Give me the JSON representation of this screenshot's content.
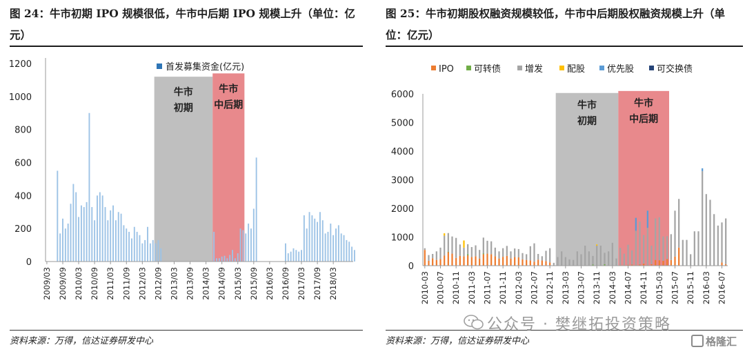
{
  "chart_data": [
    {
      "type": "bar",
      "title": "图 24：牛市初期 IPO 规模很低，牛市中后期 IPO 规模上升（单位：亿元）",
      "source": "资料来源：万得，信达证券研发中心",
      "legend": [
        "首发募集资金(亿元)"
      ],
      "legend_position": "top-center",
      "ylim": [
        0,
        1200
      ],
      "yticks": [
        0,
        200,
        400,
        600,
        800,
        1000,
        1200
      ],
      "xticks": [
        "2009/03",
        "2009/09",
        "2010/03",
        "2010/09",
        "2011/03",
        "2011/09",
        "2012/03",
        "2012/09",
        "2013/03",
        "2013/09",
        "2014/03",
        "2014/09",
        "2015/03",
        "2015/09",
        "2016/03",
        "2016/09",
        "2017/03",
        "2017/09",
        "2018/03"
      ],
      "series": [
        {
          "name": "首发募集资金(亿元)",
          "color": "#9dc3e6",
          "x_start": "2009/03",
          "frequency": "monthly",
          "values": [
            0,
            0,
            0,
            0,
            550,
            170,
            260,
            200,
            230,
            350,
            470,
            420,
            270,
            340,
            330,
            360,
            900,
            330,
            250,
            400,
            420,
            400,
            330,
            250,
            310,
            340,
            250,
            300,
            290,
            220,
            200,
            180,
            140,
            210,
            180,
            160,
            110,
            130,
            210,
            110,
            130,
            110,
            130,
            80,
            0,
            0,
            0,
            0,
            0,
            0,
            0,
            0,
            0,
            0,
            0,
            0,
            0,
            0,
            0,
            0,
            0,
            0,
            0,
            180,
            20,
            20,
            30,
            35,
            20,
            40,
            70,
            20,
            50,
            200,
            190,
            170,
            230,
            200,
            320,
            630,
            0,
            0,
            0,
            0,
            0,
            0,
            0,
            0,
            0,
            0,
            110,
            50,
            60,
            80,
            70,
            60,
            70,
            280,
            200,
            300,
            280,
            260,
            240,
            300,
            250,
            170,
            180,
            230,
            160,
            200,
            220,
            170,
            160,
            130,
            120,
            90,
            70
          ]
        }
      ],
      "shaded_periods": [
        {
          "label_line1": "牛市",
          "label_line2": "初期",
          "start": "2012/08",
          "end": "2014/06",
          "color": "#bfbfbf"
        },
        {
          "label_line1": "牛市",
          "label_line2": "中后期",
          "start": "2014/06",
          "end": "2015/06",
          "color": "#e8898c"
        }
      ]
    },
    {
      "type": "bar",
      "stacked": true,
      "title": "图 25：牛市初期股权融资规模较低，牛市中后期股权融资规模上升（单位：亿元）",
      "source": "资料来源：万得，信达证券研发中心",
      "legend_position": "top",
      "ylim": [
        0,
        6000
      ],
      "yticks": [
        0,
        1000,
        2000,
        3000,
        4000,
        5000,
        6000
      ],
      "xticks": [
        "2010-03",
        "2010-07",
        "2010-11",
        "2011-03",
        "2011-07",
        "2011-11",
        "2012-03",
        "2012-07",
        "2012-11",
        "2013-03",
        "2013-07",
        "2013-11",
        "2014-03",
        "2014-07",
        "2014-11",
        "2015-03",
        "2015-07",
        "2015-11",
        "2016-03",
        "2016-07"
      ],
      "x_start": "2010-03",
      "frequency": "monthly",
      "series": [
        {
          "name": "IPO",
          "color": "#ed7d31",
          "values": [
            550,
            170,
            260,
            200,
            230,
            350,
            470,
            420,
            270,
            340,
            330,
            360,
            300,
            330,
            250,
            400,
            420,
            400,
            330,
            250,
            310,
            340,
            250,
            300,
            290,
            220,
            200,
            180,
            140,
            210,
            180,
            160,
            110,
            0,
            0,
            0,
            0,
            0,
            0,
            0,
            0,
            0,
            0,
            0,
            0,
            0,
            0,
            0,
            0,
            0,
            20,
            20,
            30,
            35,
            20,
            40,
            70,
            20,
            50,
            200,
            190,
            170,
            230,
            200,
            320,
            630,
            0,
            0,
            0,
            0,
            0,
            0,
            0,
            0,
            0,
            0,
            110,
            50
          ]
        },
        {
          "name": "可转债",
          "color": "#70ad47",
          "values": [
            0,
            0,
            0,
            0,
            0,
            0,
            20,
            0,
            0,
            0,
            0,
            40,
            0,
            0,
            0,
            30,
            0,
            0,
            0,
            0,
            0,
            0,
            0,
            0,
            0,
            0,
            0,
            0,
            0,
            0,
            0,
            0,
            0,
            0,
            0,
            0,
            0,
            0,
            0,
            0,
            0,
            0,
            0,
            40,
            0,
            0,
            50,
            0,
            0,
            0,
            0,
            0,
            0,
            0,
            0,
            0,
            0,
            0,
            0,
            0,
            0,
            0,
            0,
            0,
            0,
            0,
            0,
            0,
            0,
            0,
            0,
            0,
            0,
            0,
            0,
            0,
            0,
            0
          ]
        },
        {
          "name": "增发",
          "color": "#a5a5a5",
          "values": [
            60,
            200,
            150,
            300,
            400,
            700,
            650,
            600,
            700,
            400,
            300,
            350,
            350,
            380,
            300,
            550,
            450,
            450,
            300,
            250,
            300,
            350,
            250,
            300,
            290,
            220,
            200,
            500,
            640,
            200,
            150,
            360,
            500,
            100,
            300,
            500,
            300,
            220,
            200,
            500,
            400,
            700,
            500,
            300,
            700,
            700,
            400,
            500,
            800,
            250,
            600,
            400,
            700,
            500,
            1200,
            1500,
            1000,
            1300,
            650,
            1450,
            1500,
            850,
            800,
            900,
            1600,
            1700,
            900,
            900,
            400,
            1200,
            1200,
            3300,
            2500,
            2300,
            1800,
            1400,
            1400,
            1600
          ]
        },
        {
          "name": "配股",
          "color": "#ffc000",
          "values": [
            0,
            0,
            0,
            0,
            0,
            80,
            0,
            0,
            0,
            0,
            250,
            0,
            0,
            0,
            0,
            0,
            0,
            0,
            0,
            0,
            0,
            0,
            0,
            0,
            0,
            0,
            0,
            0,
            0,
            0,
            0,
            0,
            0,
            0,
            0,
            0,
            0,
            0,
            0,
            0,
            0,
            0,
            0,
            0,
            40,
            0,
            0,
            0,
            0,
            0,
            0,
            0,
            0,
            0,
            0,
            0,
            0,
            0,
            0,
            0,
            0,
            0,
            0,
            0,
            0,
            0,
            0,
            0,
            0,
            0,
            0,
            0,
            0,
            0,
            0,
            0,
            0,
            0
          ]
        },
        {
          "name": "优先股",
          "color": "#5b9bd5",
          "values": [
            0,
            0,
            0,
            0,
            0,
            0,
            0,
            0,
            0,
            0,
            0,
            0,
            0,
            0,
            0,
            0,
            0,
            0,
            0,
            0,
            0,
            0,
            0,
            0,
            0,
            0,
            0,
            0,
            0,
            0,
            0,
            0,
            0,
            0,
            0,
            0,
            0,
            0,
            0,
            0,
            0,
            0,
            0,
            0,
            0,
            0,
            0,
            0,
            0,
            0,
            0,
            0,
            0,
            0,
            450,
            0,
            0,
            600,
            0,
            0,
            0,
            0,
            0,
            0,
            0,
            0,
            0,
            0,
            0,
            0,
            0,
            100,
            0,
            0,
            0,
            0,
            0,
            0
          ]
        },
        {
          "name": "可交换债",
          "color": "#264478",
          "values": [
            0,
            0,
            0,
            0,
            0,
            0,
            0,
            0,
            0,
            0,
            0,
            0,
            0,
            0,
            0,
            0,
            0,
            0,
            0,
            0,
            0,
            0,
            0,
            0,
            0,
            0,
            0,
            0,
            0,
            0,
            0,
            0,
            0,
            0,
            0,
            0,
            0,
            0,
            0,
            0,
            0,
            0,
            0,
            0,
            0,
            0,
            0,
            0,
            0,
            0,
            0,
            0,
            0,
            0,
            0,
            0,
            0,
            0,
            0,
            0,
            0,
            0,
            0,
            0,
            0,
            0,
            0,
            0,
            0,
            0,
            0,
            0,
            0,
            0,
            0,
            0,
            0,
            0
          ]
        }
      ],
      "shaded_periods": [
        {
          "label_line1": "牛市",
          "label_line2": "初期",
          "start": "2013-01",
          "end": "2014-05",
          "color": "#bfbfbf"
        },
        {
          "label_line1": "牛市",
          "label_line2": "中后期",
          "start": "2014-05",
          "end": "2015-06",
          "color": "#e8898c"
        }
      ]
    }
  ],
  "watermark": {
    "text": "公众号 · 樊继拓投资策略",
    "icon": "wechat-icon"
  },
  "brand_badge": {
    "text": "格隆汇",
    "icon": "glh-logo-icon"
  }
}
